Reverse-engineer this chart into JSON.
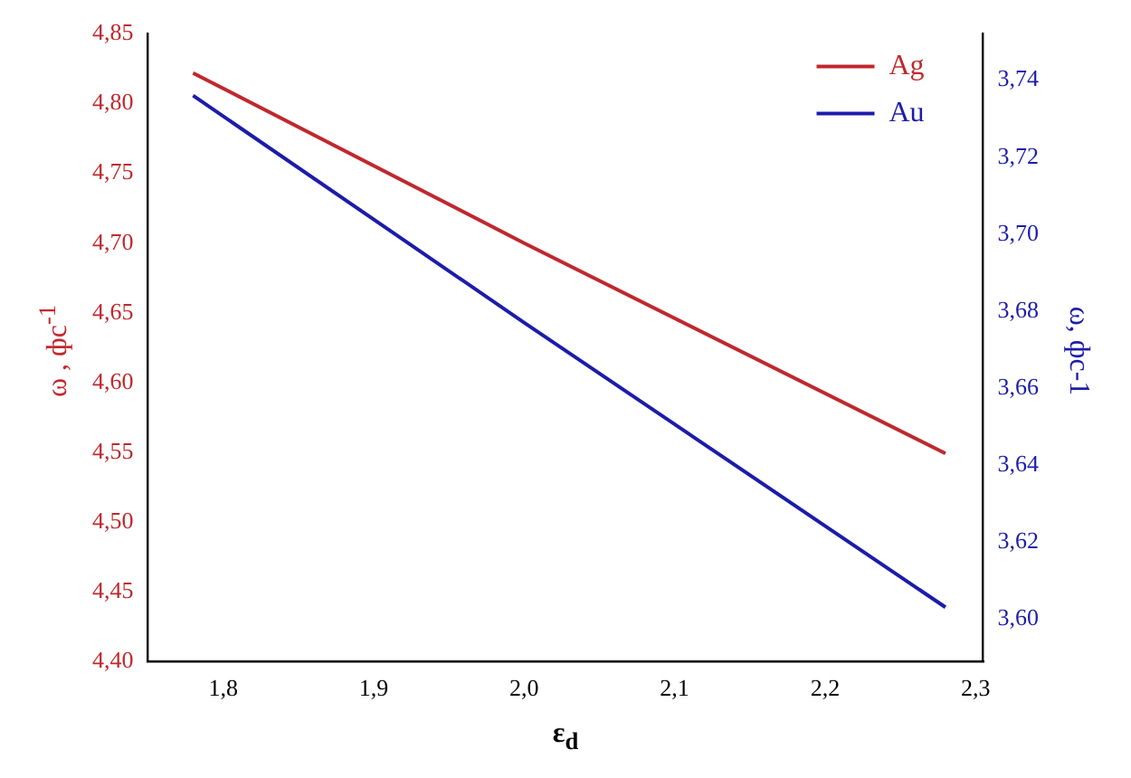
{
  "chart_data": {
    "type": "line",
    "xlabel": "ε$_{d}$",
    "ylabel": "ω , фс$^{-1}$",
    "y2label": "ω, фс-1",
    "x": [
      1.78,
      2.0,
      2.28
    ],
    "series": [
      {
        "name": "Ag",
        "color": "#c0282d",
        "values": [
          4.822,
          4.7,
          4.549
        ]
      },
      {
        "name": "Au",
        "color": "#1c1caa",
        "values": [
          3.736,
          3.677,
          3.603
        ],
        "axis": "y2"
      }
    ],
    "xlim": [
      1.75,
      2.305
    ],
    "xticks": [
      {
        "value": 1.8,
        "label": "1,8"
      },
      {
        "value": 1.9,
        "label": "1,9"
      },
      {
        "value": 2.0,
        "label": "2,0"
      },
      {
        "value": 2.1,
        "label": "2,1"
      },
      {
        "value": 2.2,
        "label": "2,2"
      },
      {
        "value": 2.3,
        "label": "2,3"
      }
    ],
    "ylim": [
      4.4,
      4.85
    ],
    "yticks": [
      {
        "value": 4.4,
        "label": "4,40"
      },
      {
        "value": 4.45,
        "label": "4,45"
      },
      {
        "value": 4.5,
        "label": "4,50"
      },
      {
        "value": 4.55,
        "label": "4,55"
      },
      {
        "value": 4.6,
        "label": "4,60"
      },
      {
        "value": 4.65,
        "label": "4,65"
      },
      {
        "value": 4.7,
        "label": "4,70"
      },
      {
        "value": 4.75,
        "label": "4,75"
      },
      {
        "value": 4.8,
        "label": "4,80"
      },
      {
        "value": 4.85,
        "label": "4,85"
      }
    ],
    "y2lim": [
      3.589,
      3.752
    ],
    "y2ticks": [
      {
        "value": 3.6,
        "label": "3,60"
      },
      {
        "value": 3.62,
        "label": "3,62"
      },
      {
        "value": 3.64,
        "label": "3,64"
      },
      {
        "value": 3.66,
        "label": "3,66"
      },
      {
        "value": 3.68,
        "label": "3,68"
      },
      {
        "value": 3.7,
        "label": "3,70"
      },
      {
        "value": 3.72,
        "label": "3,72"
      },
      {
        "value": 3.74,
        "label": "3,74"
      }
    ],
    "legend": "top right",
    "grid": false,
    "marker": "none",
    "line_style": "solid"
  }
}
